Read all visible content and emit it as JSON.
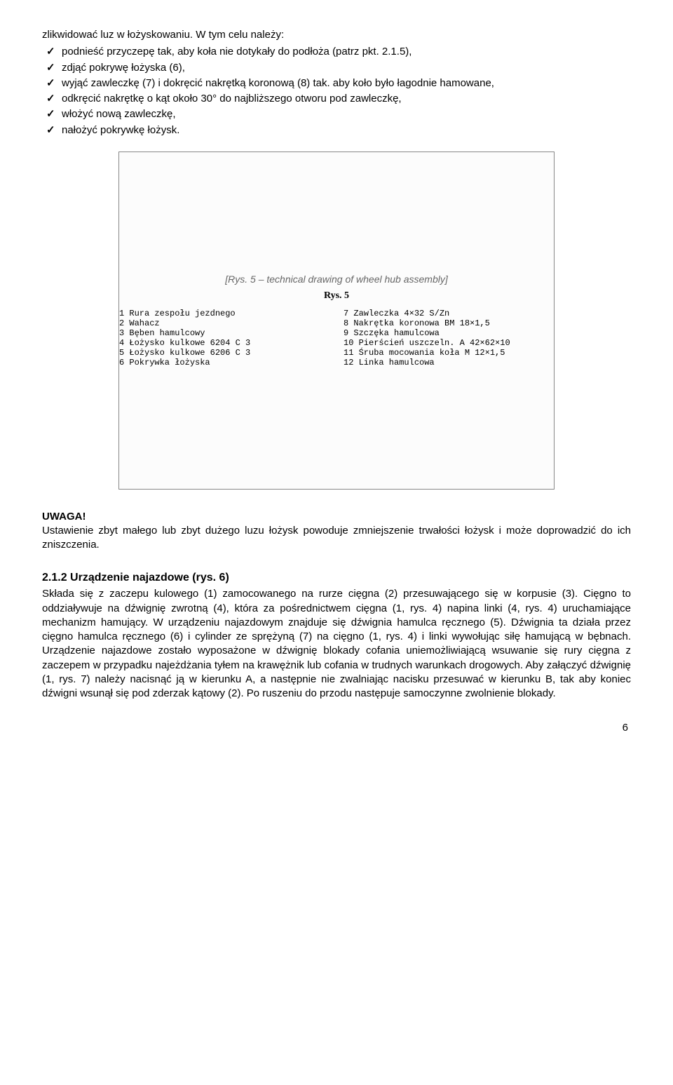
{
  "intro": "zlikwidować luz w łożyskowaniu. W tym celu należy:",
  "checklist": [
    "podnieść przyczepę tak, aby koła nie dotykały do podłoża (patrz pkt. 2.1.5),",
    "zdjąć pokrywę łożyska (6),",
    "wyjąć zawleczkę (7) i dokręcić nakrętką koronową (8) tak. aby koło było łagodnie hamowane,",
    "odkręcić nakrętkę o kąt około 30° do najbliższego otworu pod zawleczkę,",
    "włożyć nową zawleczkę,",
    "nałożyć pokrywkę łożysk."
  ],
  "figure": {
    "placeholder": "[Rys. 5 – technical drawing of wheel hub assembly]",
    "caption": "Rys. 5",
    "legend_left": [
      "1  Rura zespołu jezdnego",
      "2  Wahacz",
      "3  Bęben hamulcowy",
      "4  Łożysko kulkowe  6204 C 3",
      "5  Łożysko kulkowe  6206 C 3",
      "6  Pokrywka łożyska"
    ],
    "legend_right": [
      "7  Zawleczka  4×32 S/Zn",
      "8  Nakrętka koronowa  BM 18×1,5",
      "9  Szczęka hamulcowa",
      "10 Pierścień uszczeln. A 42×62×10",
      "11 Śruba mocowania koła M 12×1,5",
      "12 Linka hamulcowa"
    ]
  },
  "warning": {
    "heading": "UWAGA!",
    "text": "Ustawienie zbyt małego lub zbyt dużego luzu łożysk powoduje zmniejszenie trwałości łożysk i może doprowadzić do ich zniszczenia."
  },
  "section": {
    "heading": "2.1.2 Urządzenie najazdowe (rys. 6)",
    "body": "Składa się z zaczepu kulowego (1) zamocowanego na rurze cięgna (2) przesuwającego się w korpusie (3). Cięgno to oddziaływuje na dźwignię zwrotną (4), która za pośrednictwem cięgna (1, rys. 4) napina linki (4, rys. 4) uruchamiające mechanizm hamujący. W urządzeniu najazdowym znajduje się dźwignia hamulca ręcznego (5). Dźwignia ta działa przez cięgno hamulca ręcznego (6) i cylinder ze sprężyną (7) na cięgno (1, rys. 4) i linki wywołując siłę hamującą w bębnach. Urządzenie najazdowe zostało wyposażone w dźwignię blokady cofania uniemożliwiającą wsuwanie się rury cięgna z zaczepem w przypadku najeżdżania tyłem na krawężnik lub cofania w trudnych warunkach drogowych. Aby załączyć dźwignię (1, rys. 7) należy nacisnąć ją w kierunku A, a następnie nie zwalniając nacisku przesuwać w kierunku B, tak aby koniec dźwigni wsunął się pod zderzak kątowy (2). Po ruszeniu do przodu następuje samoczynne zwolnienie blokady."
  },
  "page_number": "6"
}
